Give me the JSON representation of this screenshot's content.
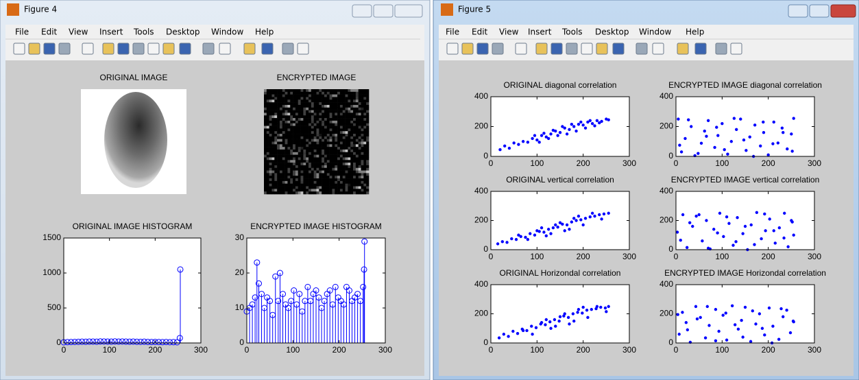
{
  "windows": [
    {
      "title": "Figure 4",
      "menu": [
        "File",
        "Edit",
        "View",
        "Insert",
        "Tools",
        "Desktop",
        "Window",
        "Help"
      ]
    },
    {
      "title": "Figure 5",
      "menu": [
        "File",
        "Edit",
        "View",
        "Insert",
        "Tools",
        "Desktop",
        "Window",
        "Help"
      ]
    }
  ],
  "images": [
    {
      "title": "ORIGINAL IMAGE"
    },
    {
      "title": "ENCRYPTED IMAGE"
    }
  ],
  "chart_data": [
    {
      "type": "stem",
      "title": "ORIGINAL IMAGE HISTOGRAM",
      "color": "#0000ff",
      "x": [
        0,
        8,
        16,
        24,
        32,
        40,
        48,
        56,
        64,
        72,
        80,
        88,
        96,
        104,
        112,
        120,
        128,
        136,
        144,
        152,
        160,
        168,
        176,
        184,
        192,
        200,
        208,
        216,
        224,
        232,
        240,
        248,
        254,
        255
      ],
      "values": [
        10,
        12,
        14,
        15,
        16,
        18,
        17,
        19,
        20,
        18,
        22,
        21,
        20,
        19,
        22,
        20,
        21,
        19,
        18,
        20,
        17,
        16,
        18,
        15,
        14,
        15,
        13,
        12,
        14,
        11,
        12,
        10,
        70,
        1050
      ],
      "xlim": [
        0,
        300
      ],
      "xticks": [
        0,
        100,
        200,
        300
      ],
      "ylim": [
        0,
        1500
      ],
      "yticks": [
        0,
        500,
        1000,
        1500
      ]
    },
    {
      "type": "stem",
      "title": "ENCRYPTED IMAGE HISTOGRAM",
      "color": "#0000ff",
      "x": [
        0,
        6,
        12,
        18,
        22,
        26,
        32,
        38,
        44,
        50,
        56,
        62,
        68,
        72,
        78,
        84,
        90,
        96,
        102,
        108,
        114,
        120,
        126,
        132,
        138,
        144,
        150,
        156,
        162,
        168,
        174,
        180,
        186,
        192,
        198,
        204,
        210,
        216,
        222,
        228,
        234,
        240,
        246,
        252,
        254,
        255
      ],
      "values": [
        9,
        10,
        11,
        13,
        23,
        17,
        14,
        10,
        13,
        12,
        8,
        19,
        12,
        20,
        14,
        11,
        10,
        12,
        15,
        11,
        14,
        9,
        12,
        16,
        12,
        14,
        15,
        13,
        10,
        12,
        14,
        15,
        11,
        16,
        13,
        12,
        11,
        16,
        15,
        12,
        13,
        14,
        12,
        16,
        21,
        29
      ],
      "xlim": [
        0,
        300
      ],
      "xticks": [
        0,
        100,
        200,
        300
      ],
      "ylim": [
        0,
        30
      ],
      "yticks": [
        0,
        10,
        20,
        30
      ]
    },
    {
      "type": "scatter",
      "title": "ORIGINAL diagonal correlation",
      "color": "#0000ff",
      "x": [
        20,
        30,
        40,
        50,
        60,
        70,
        80,
        90,
        100,
        110,
        120,
        130,
        140,
        150,
        160,
        170,
        180,
        190,
        200,
        210,
        220,
        230,
        240,
        250,
        255,
        95,
        105,
        115,
        125,
        135,
        145,
        155,
        165,
        175,
        185,
        195,
        205,
        215,
        225,
        235
      ],
      "values": [
        45,
        70,
        55,
        90,
        80,
        100,
        95,
        120,
        110,
        140,
        130,
        150,
        170,
        160,
        190,
        180,
        200,
        215,
        210,
        230,
        220,
        240,
        235,
        250,
        245,
        140,
        95,
        155,
        120,
        175,
        140,
        200,
        150,
        215,
        170,
        230,
        190,
        240,
        205,
        225
      ],
      "xlim": [
        0,
        300
      ],
      "xticks": [
        0,
        100,
        200,
        300
      ],
      "ylim": [
        0,
        400
      ],
      "yticks": [
        0,
        200,
        400
      ]
    },
    {
      "type": "scatter",
      "title": "ENCRYPTED IMAGE diagonal correlation",
      "color": "#0000ff",
      "x": [
        5,
        12,
        20,
        33,
        41,
        55,
        62,
        70,
        84,
        91,
        100,
        112,
        120,
        131,
        140,
        152,
        160,
        171,
        183,
        190,
        200,
        212,
        221,
        230,
        241,
        250,
        255,
        8,
        27,
        48,
        66,
        88,
        105,
        126,
        147,
        168,
        189,
        210,
        232,
        252
      ],
      "values": [
        250,
        30,
        120,
        200,
        5,
        88,
        170,
        240,
        60,
        140,
        220,
        15,
        100,
        180,
        250,
        40,
        130,
        210,
        70,
        160,
        10,
        230,
        90,
        190,
        50,
        150,
        255,
        75,
        245,
        20,
        135,
        195,
        45,
        255,
        110,
        0,
        230,
        85,
        160,
        35
      ],
      "xlim": [
        0,
        300
      ],
      "xticks": [
        0,
        100,
        200,
        300
      ],
      "ylim": [
        0,
        400
      ],
      "yticks": [
        0,
        200,
        400
      ]
    },
    {
      "type": "scatter",
      "title": "ORIGINAL vertical correlation",
      "color": "#0000ff",
      "x": [
        15,
        25,
        35,
        45,
        55,
        65,
        75,
        85,
        95,
        105,
        115,
        125,
        135,
        145,
        155,
        165,
        175,
        185,
        195,
        205,
        215,
        225,
        235,
        245,
        255,
        60,
        80,
        100,
        120,
        140,
        160,
        180,
        200,
        220,
        240,
        110,
        130,
        150,
        170,
        190
      ],
      "values": [
        40,
        55,
        50,
        75,
        70,
        90,
        85,
        110,
        100,
        125,
        120,
        140,
        150,
        155,
        175,
        170,
        190,
        200,
        205,
        215,
        225,
        230,
        240,
        245,
        250,
        100,
        70,
        130,
        95,
        170,
        130,
        215,
        170,
        250,
        210,
        150,
        110,
        185,
        140,
        230
      ],
      "xlim": [
        0,
        300
      ],
      "xticks": [
        0,
        100,
        200,
        300
      ],
      "ylim": [
        0,
        400
      ],
      "yticks": [
        0,
        200,
        400
      ]
    },
    {
      "type": "scatter",
      "title": "ENCRYPTED IMAGE vertical correlation",
      "color": "#0000ff",
      "x": [
        3,
        15,
        24,
        36,
        44,
        57,
        66,
        74,
        82,
        95,
        103,
        115,
        124,
        133,
        145,
        155,
        163,
        175,
        185,
        194,
        203,
        215,
        224,
        235,
        243,
        252,
        255,
        10,
        30,
        50,
        70,
        90,
        110,
        130,
        150,
        170,
        192,
        212,
        234,
        250
      ],
      "values": [
        120,
        240,
        15,
        160,
        230,
        60,
        200,
        5,
        140,
        250,
        90,
        180,
        30,
        220,
        110,
        0,
        170,
        255,
        75,
        130,
        210,
        45,
        150,
        250,
        20,
        190,
        100,
        65,
        185,
        240,
        10,
        115,
        225,
        55,
        160,
        35,
        245,
        130,
        80,
        200
      ],
      "xlim": [
        0,
        300
      ],
      "xticks": [
        0,
        100,
        200,
        300
      ],
      "ylim": [
        0,
        400
      ],
      "yticks": [
        0,
        200,
        400
      ]
    },
    {
      "type": "scatter",
      "title": "ORIGINAL Horizondal correlation",
      "color": "#0000ff",
      "x": [
        18,
        28,
        38,
        48,
        58,
        68,
        78,
        88,
        98,
        108,
        118,
        128,
        138,
        148,
        158,
        168,
        178,
        188,
        198,
        208,
        218,
        228,
        238,
        248,
        255,
        70,
        90,
        110,
        130,
        150,
        170,
        190,
        210,
        230,
        250,
        120,
        140,
        160,
        180,
        200
      ],
      "values": [
        35,
        60,
        45,
        80,
        65,
        95,
        85,
        115,
        105,
        130,
        125,
        145,
        160,
        150,
        185,
        175,
        200,
        210,
        205,
        225,
        230,
        235,
        245,
        240,
        250,
        85,
        60,
        140,
        100,
        180,
        130,
        230,
        175,
        250,
        215,
        160,
        115,
        200,
        150,
        245
      ],
      "xlim": [
        0,
        300
      ],
      "xticks": [
        0,
        100,
        200,
        300
      ],
      "ylim": [
        0,
        400
      ],
      "yticks": [
        0,
        200,
        400
      ]
    },
    {
      "type": "scatter",
      "title": "ENCRYPTED IMAGE Horizondal correlation",
      "color": "#0000ff",
      "x": [
        7,
        14,
        22,
        31,
        43,
        53,
        64,
        72,
        86,
        93,
        102,
        110,
        122,
        135,
        142,
        150,
        162,
        173,
        181,
        192,
        202,
        210,
        223,
        232,
        240,
        248,
        255,
        4,
        25,
        46,
        68,
        86,
        108,
        128,
        145,
        166,
        187,
        208,
        228,
        254
      ],
      "values": [
        60,
        210,
        140,
        5,
        250,
        175,
        35,
        120,
        230,
        80,
        190,
        20,
        255,
        95,
        155,
        245,
        10,
        130,
        200,
        55,
        240,
        115,
        25,
        180,
        225,
        70,
        145,
        195,
        90,
        165,
        250,
        15,
        205,
        125,
        40,
        220,
        100,
        0,
        235,
        150
      ],
      "xlim": [
        0,
        300
      ],
      "xticks": [
        0,
        100,
        200,
        300
      ],
      "ylim": [
        0,
        400
      ],
      "yticks": [
        0,
        200,
        400
      ]
    }
  ]
}
